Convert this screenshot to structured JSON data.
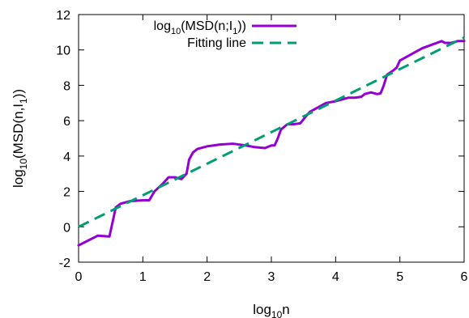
{
  "chart_data": {
    "type": "line",
    "xlabel": "log",
    "xlabel_sub": "10",
    "xlabel_tail": "n",
    "ylabel": {
      "a": "log",
      "a_sub": "10",
      "b": "(MSD(n,I",
      "b_sub": "1",
      "c": "))"
    },
    "xlim": [
      0,
      6
    ],
    "ylim": [
      -2,
      12
    ],
    "xticks": [
      0,
      1,
      2,
      3,
      4,
      5,
      6
    ],
    "yticks": [
      -2,
      0,
      2,
      4,
      6,
      8,
      10,
      12
    ],
    "grid": false,
    "legend_position": "top-left",
    "series": [
      {
        "name": {
          "a": "log",
          "a_sub": "10",
          "b": "(MSD(n;I",
          "b_sub": "1",
          "c": "))"
        },
        "color": "#9400d3",
        "style": "solid",
        "x": [
          0,
          0.3,
          0.48,
          0.58,
          0.65,
          0.8,
          1.0,
          1.1,
          1.18,
          1.3,
          1.4,
          1.5,
          1.6,
          1.68,
          1.72,
          1.78,
          1.85,
          2.0,
          2.2,
          2.4,
          2.6,
          2.75,
          2.9,
          3.0,
          3.05,
          3.1,
          3.15,
          3.25,
          3.35,
          3.45,
          3.55,
          3.6,
          3.7,
          3.85,
          4.0,
          4.1,
          4.2,
          4.3,
          4.4,
          4.45,
          4.55,
          4.65,
          4.7,
          4.75,
          4.8,
          4.9,
          4.95,
          5.0,
          5.1,
          5.2,
          5.35,
          5.5,
          5.65,
          5.7,
          5.8,
          5.9,
          6.0
        ],
        "y": [
          -1.05,
          -0.5,
          -0.55,
          1.1,
          1.3,
          1.45,
          1.5,
          1.5,
          2.0,
          2.4,
          2.8,
          2.8,
          2.7,
          3.0,
          3.8,
          4.2,
          4.4,
          4.55,
          4.65,
          4.7,
          4.6,
          4.5,
          4.45,
          4.6,
          4.6,
          5.0,
          5.5,
          5.8,
          5.8,
          5.85,
          6.3,
          6.5,
          6.7,
          7.0,
          7.1,
          7.2,
          7.3,
          7.3,
          7.35,
          7.5,
          7.6,
          7.5,
          7.55,
          8.0,
          8.6,
          8.85,
          9.0,
          9.4,
          9.6,
          9.8,
          10.1,
          10.3,
          10.5,
          10.4,
          10.4,
          10.5,
          10.5
        ]
      },
      {
        "name": "Fitting line",
        "color": "#009e73",
        "style": "dashed",
        "x": [
          0,
          6
        ],
        "y": [
          0,
          10.7
        ]
      }
    ]
  }
}
